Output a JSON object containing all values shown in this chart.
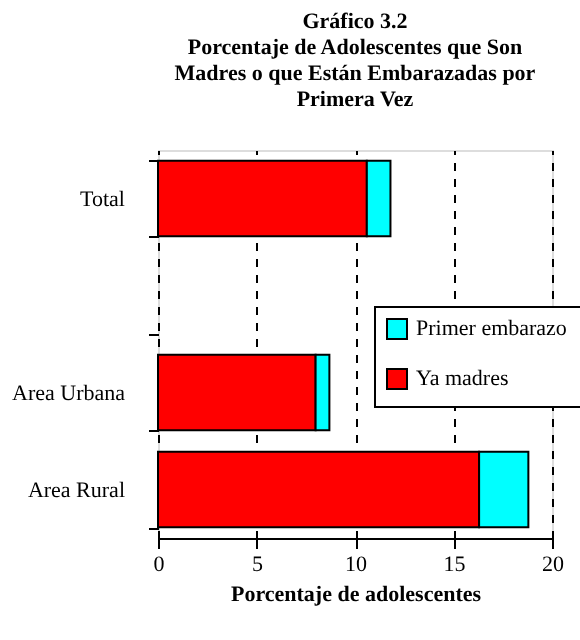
{
  "chart_data": {
    "type": "bar",
    "orientation": "horizontal",
    "stacked": true,
    "title": "Gráfico 3.2",
    "subtitle": "Porcentaje de Adolescentes que Son Madres o que Están Embarazadas por Primera Vez",
    "xlabel": "Porcentaje de adolescentes",
    "categories": [
      "Total",
      null,
      "Area Urbana",
      "Area Rural"
    ],
    "series": [
      {
        "name": "Ya madres",
        "color": "#ff0000",
        "values": [
          10.6,
          null,
          8.0,
          16.3
        ]
      },
      {
        "name": "Primer embarazo",
        "color": "#00ffff",
        "values": [
          1.2,
          null,
          0.7,
          2.5
        ]
      }
    ],
    "xlim": [
      0,
      20
    ],
    "xticks": [
      0,
      5,
      10,
      15,
      20
    ],
    "grid": "x",
    "legend": "right"
  }
}
